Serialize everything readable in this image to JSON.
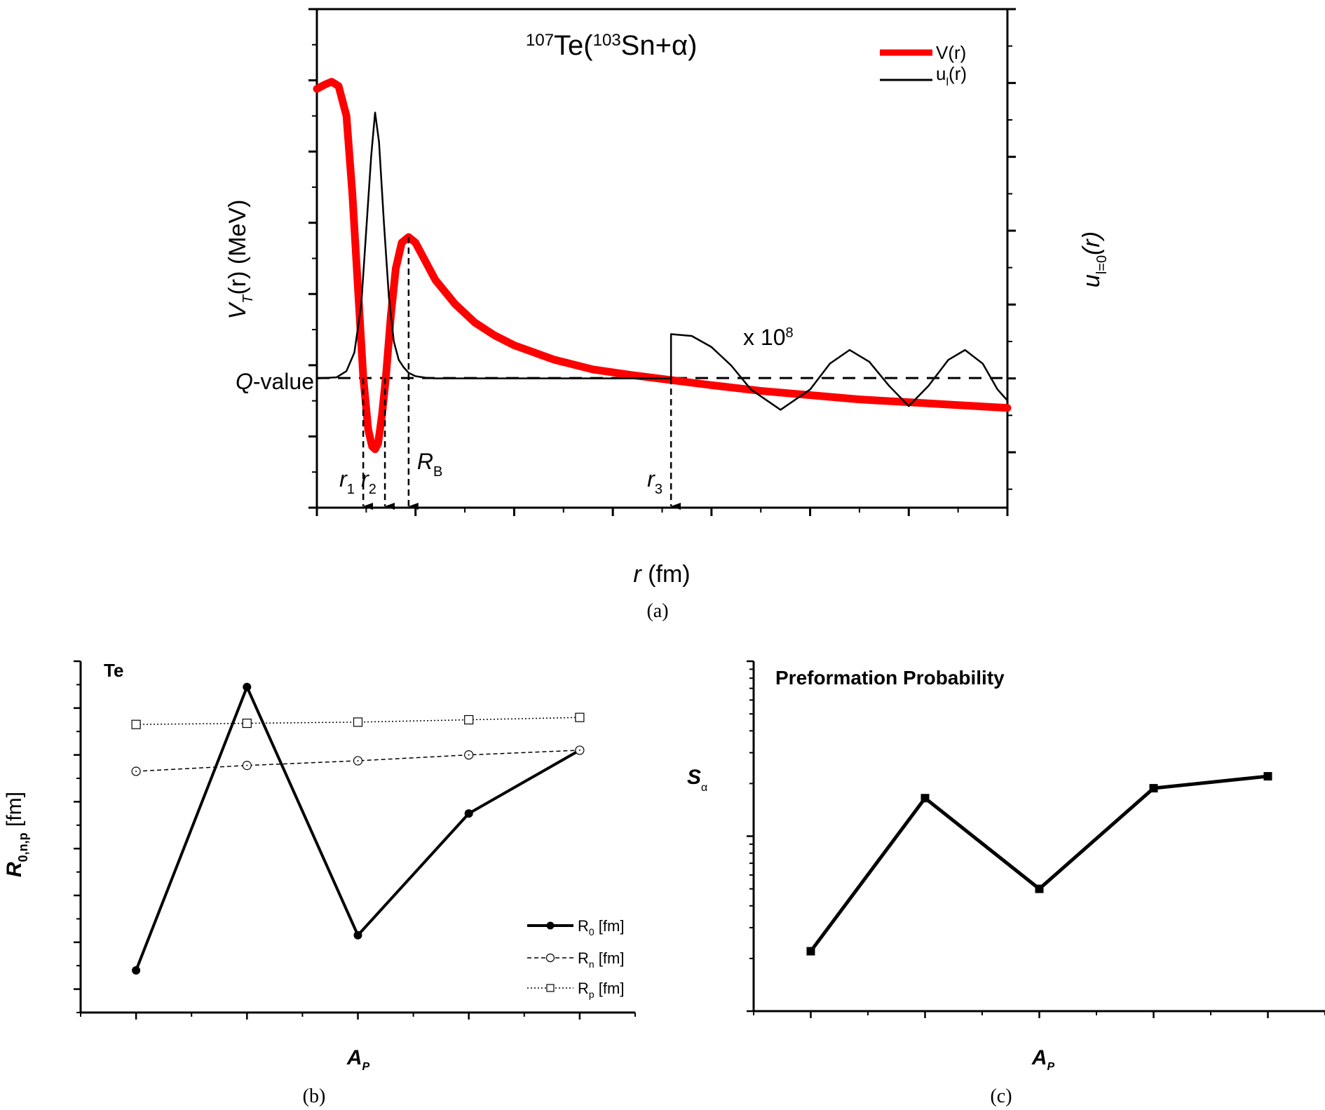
{
  "figure": {
    "captions": [
      "(a)",
      "(b)",
      "(c)"
    ]
  },
  "chart_data": [
    {
      "id": "a",
      "type": "line",
      "title": "107Te(103Sn+α)",
      "title_parts": {
        "mass1": "107",
        "el1": "Te(",
        "mass2": "103",
        "el2": "Sn+α)"
      },
      "xlabel": "r (fm)",
      "xlabel_parts": {
        "var": "r",
        "unit": " (fm)"
      },
      "ylabel": "V_T(r) (MeV)",
      "ylabel_parts": {
        "var": "V",
        "sub": "T",
        "rest": "(r) (MeV)"
      },
      "y2label": "u_l=0(r)",
      "y2label_parts": {
        "var": "u",
        "sub": "l=0",
        "rest": "(r)"
      },
      "xlim": [
        0,
        70
      ],
      "ylim": [
        -5,
        30
      ],
      "y2lim": [
        -0.35,
        1.0
      ],
      "xticks": [
        0,
        10,
        20,
        30,
        40,
        50,
        60,
        70
      ],
      "yticks": [
        -5,
        0,
        5,
        10,
        15,
        20,
        25,
        30
      ],
      "y2ticks": [
        "-0.2",
        "0.0",
        "0.2",
        "0.4",
        "0.6",
        "0.8",
        "1.0"
      ],
      "y2tick_values": [
        -0.2,
        0.0,
        0.2,
        0.4,
        0.6,
        0.8,
        1.0
      ],
      "legend": [
        {
          "label": "V(r)",
          "color": "#ff0000",
          "style": "thick-solid"
        },
        {
          "label": "u_l(r)",
          "label_parts": {
            "var": "u",
            "sub": "l",
            "rest": "(r)"
          },
          "color": "#000000",
          "style": "thin-solid"
        }
      ],
      "legend_position": "top-right",
      "q_value": 4.1,
      "q_label": "Q-value",
      "q_label_parts": {
        "var": "Q",
        "rest": "-value"
      },
      "scale_annotation": {
        "text": "x 10",
        "exp": "8"
      },
      "turning_points": [
        {
          "name": "r1",
          "label": "r",
          "sub": "1",
          "r": 4.7
        },
        {
          "name": "r2",
          "label": "r",
          "sub": "2",
          "r": 6.9
        },
        {
          "name": "RB",
          "label": "R",
          "sub": "B",
          "r": 9.3
        },
        {
          "name": "r3",
          "label": "r",
          "sub": "3",
          "r": 35.9
        }
      ],
      "series": [
        {
          "name": "V(r)",
          "axis": "left",
          "color": "#ff0000",
          "x": [
            0,
            0.8,
            1.5,
            2.2,
            3.0,
            3.6,
            4.2,
            4.7,
            5.2,
            5.6,
            5.9,
            6.2,
            6.6,
            7.0,
            7.5,
            8.0,
            8.6,
            9.3,
            10.0,
            11.0,
            12.0,
            14.0,
            16.0,
            18.0,
            20.0,
            24.0,
            28.0,
            32.0,
            36.0,
            40.0,
            45.0,
            50.0,
            55.0,
            60.0,
            65.0,
            70.0
          ],
          "y": [
            24.4,
            24.7,
            24.9,
            24.6,
            22.5,
            17.0,
            10.0,
            4.2,
            0.5,
            -0.7,
            -0.9,
            -0.5,
            1.5,
            4.2,
            8.5,
            11.8,
            13.6,
            14.0,
            13.6,
            12.3,
            11.0,
            9.3,
            8.0,
            7.1,
            6.4,
            5.4,
            4.7,
            4.3,
            3.95,
            3.6,
            3.2,
            2.9,
            2.6,
            2.4,
            2.2,
            2.0
          ]
        },
        {
          "name": "u_l(r)",
          "axis": "right",
          "color": "#000000",
          "x": [
            0,
            2.0,
            3.0,
            3.8,
            4.5,
            5.0,
            5.5,
            5.9,
            6.3,
            6.8,
            7.3,
            7.8,
            8.3,
            8.8,
            9.3,
            10.0,
            11.0,
            12.0,
            20.0,
            35.9,
            35.9,
            38.0,
            40.0,
            42.0,
            44.0,
            47.0,
            50.0,
            52.0,
            54.0,
            56.0,
            58.0,
            60.0,
            62.0,
            64.0,
            65.7,
            67.5,
            69.0,
            70.0
          ],
          "y": [
            0.0,
            0.003,
            0.02,
            0.07,
            0.2,
            0.4,
            0.6,
            0.72,
            0.64,
            0.42,
            0.22,
            0.1,
            0.05,
            0.03,
            0.015,
            0.006,
            0.002,
            0.0,
            0.0,
            0.0,
            0.12,
            0.115,
            0.085,
            0.035,
            -0.03,
            -0.085,
            -0.03,
            0.04,
            0.077,
            0.045,
            -0.02,
            -0.075,
            -0.02,
            0.05,
            0.077,
            0.04,
            -0.03,
            -0.06
          ]
        }
      ]
    },
    {
      "id": "b",
      "type": "line",
      "title": "Te",
      "xlabel": "A_P",
      "xlabel_parts": {
        "var": "A",
        "sub": "P"
      },
      "ylabel": "R_0,n,p [fm]",
      "ylabel_parts": {
        "var": "R",
        "sub": "0,n,p",
        "rest": " [fm]"
      },
      "xlim": [
        104.5,
        109.5
      ],
      "ylim": [
        4.1,
        5.6
      ],
      "xticks": [
        105,
        106,
        107,
        108,
        109
      ],
      "yticks": [
        "4.2",
        "4.4",
        "4.6",
        "4.8",
        "5.0",
        "5.2",
        "5.4",
        "5.6"
      ],
      "ytick_values": [
        4.2,
        4.4,
        4.6,
        4.8,
        5.0,
        5.2,
        5.4,
        5.6
      ],
      "categories": [
        105,
        106,
        107,
        108,
        109
      ],
      "legend_position": "bottom-right",
      "series": [
        {
          "name": "R0 [fm]",
          "label_parts": {
            "var": "R",
            "sub": "0",
            "rest": " [fm]"
          },
          "style": "solid-filled-circle",
          "values": [
            4.28,
            5.49,
            4.43,
            4.95,
            5.22
          ]
        },
        {
          "name": "Rn [fm]",
          "label_parts": {
            "var": "R",
            "sub": "n",
            "rest": " [fm]"
          },
          "style": "dashed-open-circle",
          "values": [
            5.13,
            5.155,
            5.175,
            5.2,
            5.22
          ]
        },
        {
          "name": "Rp [fm]",
          "label_parts": {
            "var": "R",
            "sub": "p",
            "rest": " [fm]"
          },
          "style": "dotted-open-square",
          "values": [
            5.33,
            5.335,
            5.34,
            5.35,
            5.36
          ]
        }
      ]
    },
    {
      "id": "c",
      "type": "line",
      "title": "Preformation Probability",
      "xlabel": "A_P",
      "xlabel_parts": {
        "var": "A",
        "sub": "P"
      },
      "ylabel": "S_α",
      "ylabel_parts": {
        "var": "S",
        "sub": "α"
      },
      "yscale": "log",
      "xlim": [
        104.5,
        109.5
      ],
      "ylim": [
        0.01,
        1
      ],
      "xticks": [
        105,
        106,
        107,
        108,
        109
      ],
      "yticks": [
        "0.01",
        "0.1",
        "1"
      ],
      "ytick_values": [
        0.01,
        0.1,
        1
      ],
      "categories": [
        105,
        106,
        107,
        108,
        109
      ],
      "series": [
        {
          "name": "Sα",
          "style": "solid-filled-square",
          "values": [
            0.022,
            0.165,
            0.05,
            0.188,
            0.22
          ]
        }
      ]
    }
  ]
}
